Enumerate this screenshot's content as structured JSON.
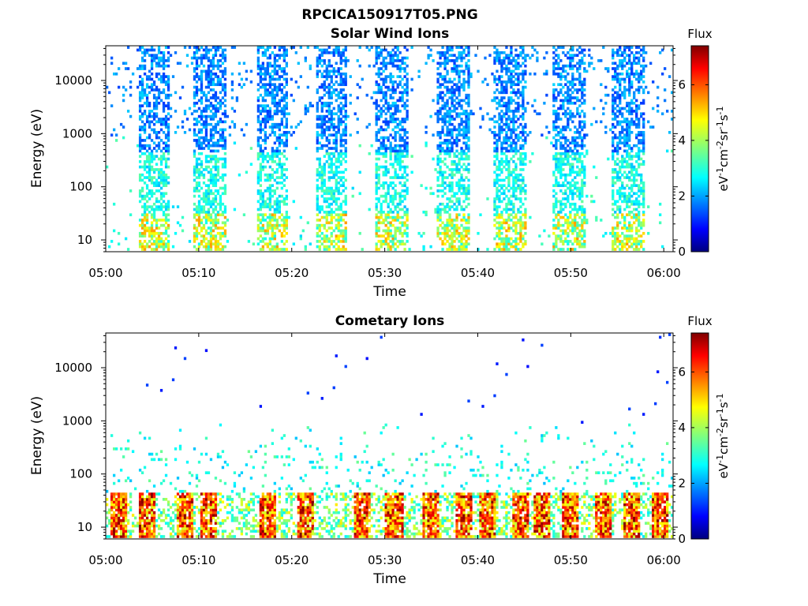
{
  "figure_title": "RPCICA150917T05.PNG",
  "chart_data": [
    {
      "type": "heatmap",
      "title": "Solar Wind Ions",
      "xlabel": "Time",
      "ylabel": "Energy (eV)",
      "x_ticks": [
        "05:00",
        "05:10",
        "05:20",
        "05:30",
        "05:40",
        "05:50",
        "06:00"
      ],
      "xlim": [
        "05:00",
        "06:01"
      ],
      "y_scale": "log",
      "y_ticks": [
        "10",
        "100",
        "1000",
        "10000"
      ],
      "ylim": [
        6,
        45000
      ],
      "colorbar": {
        "title": "Flux",
        "label": "eV-1cm-2sr-1s-1",
        "ticks": [
          "0",
          "2",
          "4",
          "6"
        ],
        "range": [
          0,
          7.4
        ],
        "colormap": "jet"
      }
    },
    {
      "type": "heatmap",
      "title": "Cometary Ions",
      "xlabel": "Time",
      "ylabel": "Energy (eV)",
      "x_ticks": [
        "05:00",
        "05:10",
        "05:20",
        "05:30",
        "05:40",
        "05:50",
        "06:00"
      ],
      "xlim": [
        "05:00",
        "06:01"
      ],
      "y_scale": "log",
      "y_ticks": [
        "10",
        "100",
        "1000",
        "10000"
      ],
      "ylim": [
        6,
        45000
      ],
      "colorbar": {
        "title": "Flux",
        "label": "eV-1cm-2sr-1s-1",
        "ticks": [
          "0",
          "2",
          "4",
          "6"
        ],
        "range": [
          0,
          7.4
        ],
        "colormap": "jet"
      }
    }
  ]
}
